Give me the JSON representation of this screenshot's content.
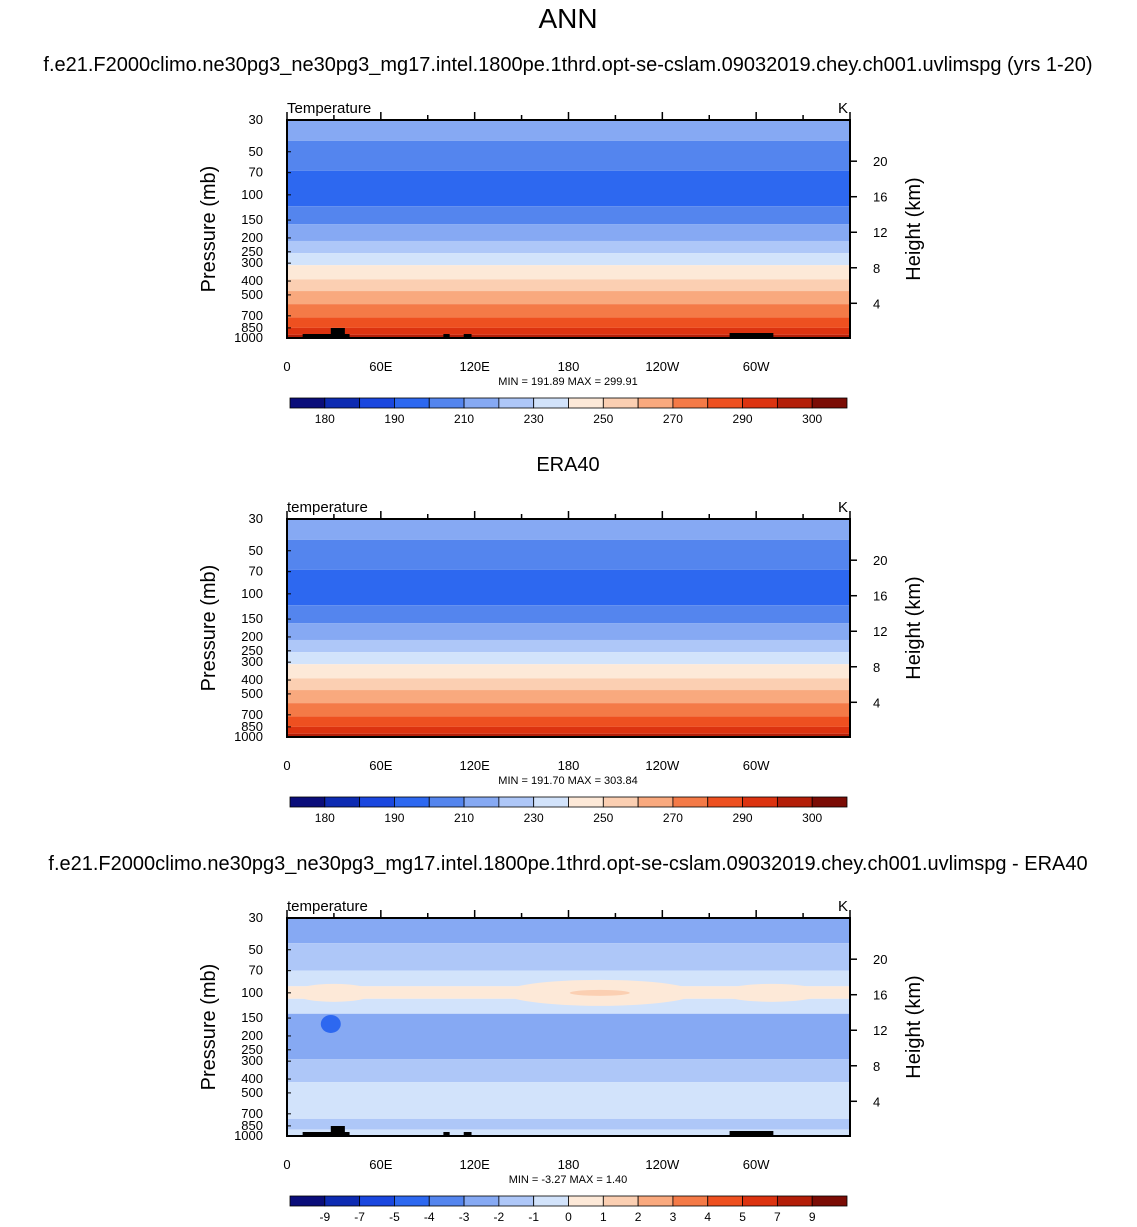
{
  "page": {
    "title": "ANN",
    "colorbar_labels_abs": [
      "180",
      "190",
      "210",
      "230",
      "250",
      "270",
      "290",
      "300"
    ],
    "colorbar_labels_diff": [
      "-9",
      "-7",
      "-5",
      "-4",
      "-3",
      "-2",
      "-1",
      "0",
      "1",
      "2",
      "3",
      "4",
      "5",
      "7",
      "9"
    ]
  },
  "colors": {
    "palette": [
      "#0a0d7a",
      "#0d2bb2",
      "#1a47df",
      "#2d68f0",
      "#5485ee",
      "#86a9f3",
      "#aec7f8",
      "#d2e3fb",
      "#fde9d8",
      "#fbcfb2",
      "#f9a97e",
      "#f47a47",
      "#ee5020",
      "#dc3310",
      "#b31e08",
      "#7b0c05"
    ]
  },
  "chart_data": [
    {
      "type": "contour",
      "heading": "f.e21.F2000climo.ne30pg3_ne30pg3_mg17.intel.1800pe.1thrd.opt-se-cslam.09032019.chey.ch001.uvlimspg (yrs 1-20)",
      "left_label": "Temperature",
      "units": "K",
      "ylabel": "Pressure (mb)",
      "ylabel_right": "Height (km)",
      "x_ticks": [
        "0",
        "60E",
        "120E",
        "180",
        "120W",
        "60W"
      ],
      "y_ticks": [
        "30",
        "50",
        "70",
        "100",
        "150",
        "200",
        "250",
        "300",
        "400",
        "500",
        "700",
        "850",
        "1000"
      ],
      "y_ticks_right": [
        "20",
        "16",
        "12",
        "8",
        "4"
      ],
      "stats": "MIN = 191.89  MAX = 299.91",
      "min": 191.89,
      "max": 299.91,
      "ylim": [
        30,
        1000
      ],
      "bands": [
        {
          "top": 30,
          "bottom": 42,
          "level": 5
        },
        {
          "top": 42,
          "bottom": 68,
          "level": 4
        },
        {
          "top": 68,
          "bottom": 120,
          "level": 3
        },
        {
          "top": 120,
          "bottom": 160,
          "level": 4
        },
        {
          "top": 160,
          "bottom": 210,
          "level": 5
        },
        {
          "top": 210,
          "bottom": 255,
          "level": 6
        },
        {
          "top": 255,
          "bottom": 310,
          "level": 7
        },
        {
          "top": 310,
          "bottom": 390,
          "level": 8
        },
        {
          "top": 390,
          "bottom": 470,
          "level": 9
        },
        {
          "top": 470,
          "bottom": 580,
          "level": 10
        },
        {
          "top": 580,
          "bottom": 720,
          "level": 11
        },
        {
          "top": 720,
          "bottom": 850,
          "level": 12
        },
        {
          "top": 850,
          "bottom": 950,
          "level": 13
        },
        {
          "top": 950,
          "bottom": 1000,
          "level": 14
        }
      ],
      "topography": true
    },
    {
      "type": "contour",
      "heading": "ERA40",
      "left_label": "temperature",
      "units": "K",
      "ylabel": "Pressure (mb)",
      "ylabel_right": "Height (km)",
      "x_ticks": [
        "0",
        "60E",
        "120E",
        "180",
        "120W",
        "60W"
      ],
      "y_ticks": [
        "30",
        "50",
        "70",
        "100",
        "150",
        "200",
        "250",
        "300",
        "400",
        "500",
        "700",
        "850",
        "1000"
      ],
      "y_ticks_right": [
        "20",
        "16",
        "12",
        "8",
        "4"
      ],
      "stats": "MIN = 191.70  MAX = 303.84",
      "min": 191.7,
      "max": 303.84,
      "ylim": [
        30,
        1000
      ],
      "bands": [
        {
          "top": 30,
          "bottom": 42,
          "level": 5
        },
        {
          "top": 42,
          "bottom": 68,
          "level": 4
        },
        {
          "top": 68,
          "bottom": 120,
          "level": 3
        },
        {
          "top": 120,
          "bottom": 160,
          "level": 4
        },
        {
          "top": 160,
          "bottom": 210,
          "level": 5
        },
        {
          "top": 210,
          "bottom": 255,
          "level": 6
        },
        {
          "top": 255,
          "bottom": 310,
          "level": 7
        },
        {
          "top": 310,
          "bottom": 390,
          "level": 8
        },
        {
          "top": 390,
          "bottom": 470,
          "level": 9
        },
        {
          "top": 470,
          "bottom": 580,
          "level": 10
        },
        {
          "top": 580,
          "bottom": 720,
          "level": 11
        },
        {
          "top": 720,
          "bottom": 850,
          "level": 12
        },
        {
          "top": 850,
          "bottom": 950,
          "level": 13
        },
        {
          "top": 950,
          "bottom": 1000,
          "level": 14
        }
      ],
      "topography": false
    },
    {
      "type": "contour",
      "heading": "f.e21.F2000climo.ne30pg3_ne30pg3_mg17.intel.1800pe.1thrd.opt-se-cslam.09032019.chey.ch001.uvlimspg - ERA40",
      "left_label": "temperature",
      "units": "K",
      "ylabel": "Pressure (mb)",
      "ylabel_right": "Height (km)",
      "x_ticks": [
        "0",
        "60E",
        "120E",
        "180",
        "120W",
        "60W"
      ],
      "y_ticks": [
        "30",
        "50",
        "70",
        "100",
        "150",
        "200",
        "250",
        "300",
        "400",
        "500",
        "700",
        "850",
        "1000"
      ],
      "y_ticks_right": [
        "20",
        "16",
        "12",
        "8",
        "4"
      ],
      "stats": "MIN =  -3.27  MAX =   1.40",
      "min": -3.27,
      "max": 1.4,
      "ylim": [
        30,
        1000
      ],
      "bands": [
        {
          "top": 30,
          "bottom": 45,
          "level": 5
        },
        {
          "top": 45,
          "bottom": 70,
          "level": 6
        },
        {
          "top": 70,
          "bottom": 90,
          "level": 7
        },
        {
          "top": 90,
          "bottom": 110,
          "level": 8
        },
        {
          "top": 110,
          "bottom": 140,
          "level": 7
        },
        {
          "top": 140,
          "bottom": 290,
          "level": 5
        },
        {
          "top": 290,
          "bottom": 420,
          "level": 6
        },
        {
          "top": 420,
          "bottom": 760,
          "level": 7
        },
        {
          "top": 760,
          "bottom": 900,
          "level": 6
        },
        {
          "top": 900,
          "bottom": 1000,
          "level": 7
        }
      ],
      "topography": true
    }
  ]
}
